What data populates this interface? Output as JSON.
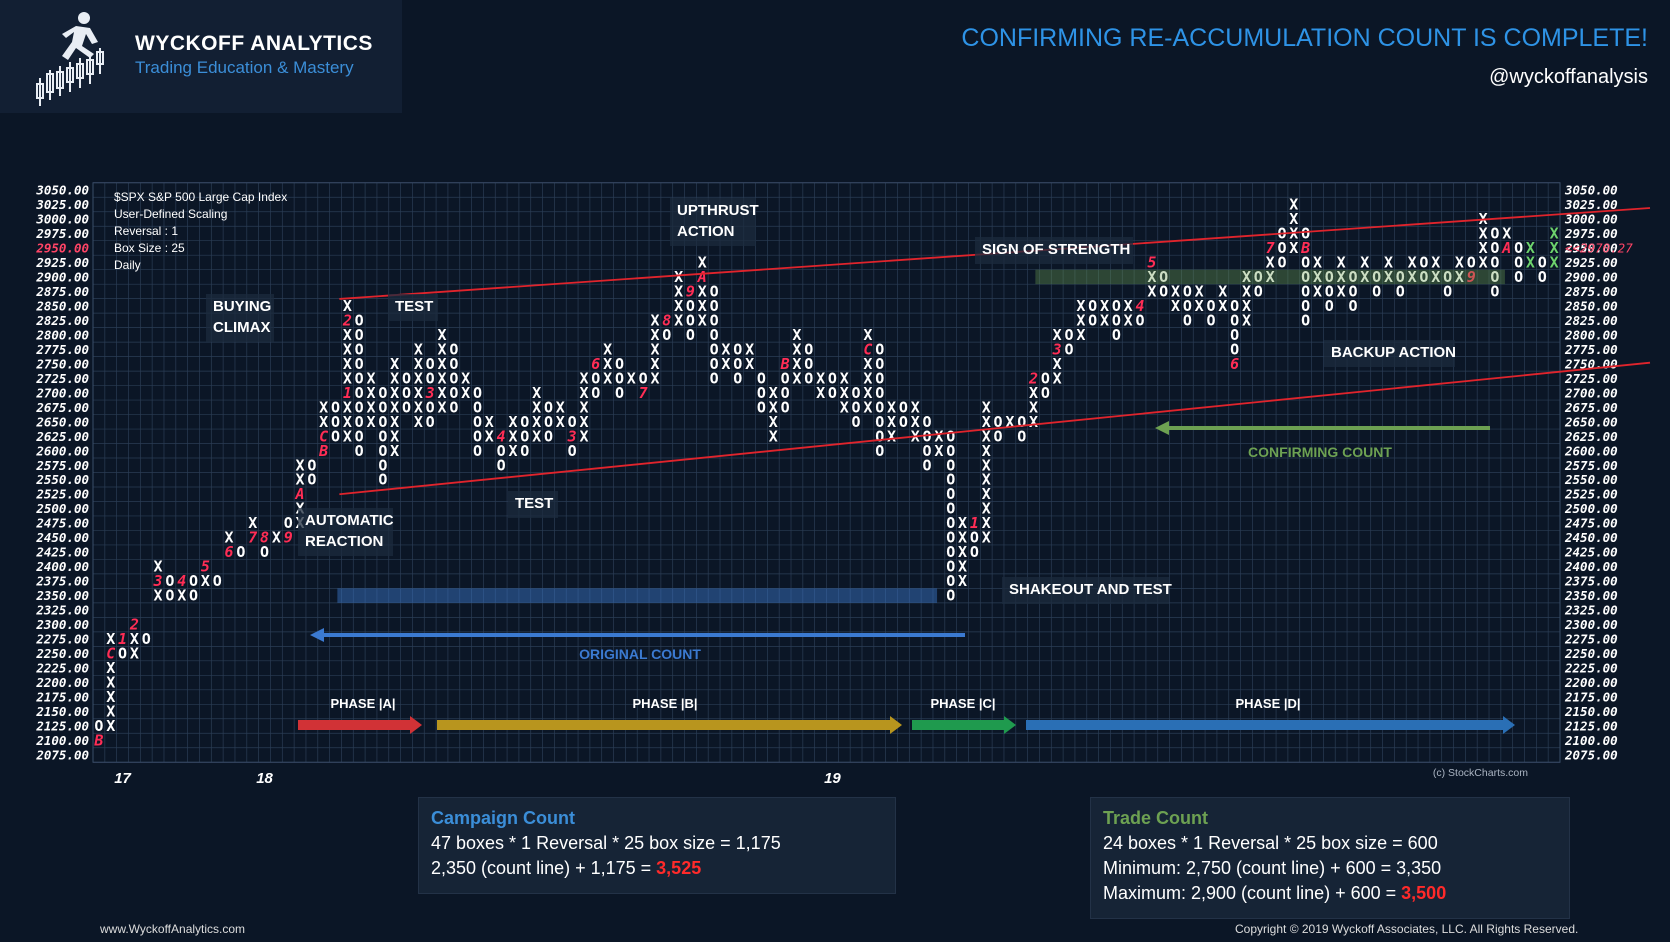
{
  "brand": {
    "name": "WYCKOFF ANALYTICS",
    "tagline": "Trading Education & Mastery"
  },
  "headline": "CONFIRMING RE-ACCUMULATION COUNT IS COMPLETE!",
  "handle": "@wyckoffanalysis",
  "info_box": [
    "$SPX S&P 500 Large Cap Index",
    "User-Defined Scaling",
    "Reversal : 1",
    "Box Size : 25",
    "Daily"
  ],
  "annotations": {
    "buying_climax": [
      "BUYING",
      "CLIMAX"
    ],
    "test1": "TEST",
    "upthrust": [
      "UPTHRUST",
      "ACTION"
    ],
    "sign_of_strength": "SIGN OF STRENGTH",
    "backup": "BACKUP ACTION",
    "confirming": "CONFIRMING COUNT",
    "automatic_reaction": [
      "AUTOMATIC",
      "REACTION"
    ],
    "test2": "TEST",
    "shakeout": "SHAKEOUT AND TEST",
    "original": "ORIGINAL COUNT"
  },
  "phases": [
    "PHASE |A|",
    "PHASE |B|",
    "PHASE |C|",
    "PHASE |D|"
  ],
  "colors": {
    "background": "#0b1626",
    "grid": "#2b3d55",
    "x_mark": "#ffffff",
    "o_mark": "#ffffff",
    "month_mark": "#ff2d55",
    "trend": "#e0242c",
    "phase_a": "#d13236",
    "phase_b": "#b8951e",
    "phase_c": "#1f9a4e",
    "phase_d": "#2a6fb5",
    "original_count": "#3b7ad1",
    "confirming_count": "#6da152"
  },
  "chart_data": {
    "type": "point-and-figure",
    "title": "$SPX S&P 500 Large Cap Index",
    "box_size": 25,
    "reversal": 1,
    "ylim": [
      2075,
      3050
    ],
    "y_ticks": [
      "3050.00",
      "3025.00",
      "3000.00",
      "2975.00",
      "2950.00",
      "2925.00",
      "2900.00",
      "2875.00",
      "2850.00",
      "2825.00",
      "2800.00",
      "2775.00",
      "2750.00",
      "2725.00",
      "2700.00",
      "2675.00",
      "2650.00",
      "2625.00",
      "2600.00",
      "2575.00",
      "2550.00",
      "2525.00",
      "2500.00",
      "2475.00",
      "2450.00",
      "2425.00",
      "2400.00",
      "2375.00",
      "2350.00",
      "2325.00",
      "2300.00",
      "2275.00",
      "2250.00",
      "2225.00",
      "2200.00",
      "2175.00",
      "2150.00",
      "2125.00",
      "2100.00",
      "2075.00"
    ],
    "highlight_left": "2950.00",
    "last_price": "<<2970.27",
    "x_labels": [
      {
        "label": "17",
        "col": 2
      },
      {
        "label": "18",
        "col": 14
      },
      {
        "label": "19",
        "col": 62
      }
    ],
    "columns": [
      {
        "type": "O",
        "low": 2100,
        "high": 2125,
        "m": {
          "2100": "B"
        }
      },
      {
        "type": "X",
        "low": 2125,
        "high": 2275,
        "m": {
          "2250": "C"
        }
      },
      {
        "type": "O",
        "low": 2250,
        "high": 2275,
        "m": {
          "2275": "1"
        }
      },
      {
        "type": "X",
        "low": 2250,
        "high": 2300,
        "m": {
          "2300": "2"
        }
      },
      {
        "type": "O",
        "low": 2275,
        "high": 2275
      },
      {
        "type": "X",
        "low": 2350,
        "high": 2400,
        "m": {
          "2375": "3"
        }
      },
      {
        "type": "O",
        "low": 2350,
        "high": 2375
      },
      {
        "type": "X",
        "low": 2350,
        "high": 2375,
        "m": {
          "2375": "4"
        }
      },
      {
        "type": "O",
        "low": 2350,
        "high": 2375
      },
      {
        "type": "X",
        "low": 2375,
        "high": 2400,
        "m": {
          "2400": "5"
        }
      },
      {
        "type": "O",
        "low": 2375,
        "high": 2375
      },
      {
        "type": "X",
        "low": 2425,
        "high": 2450,
        "m": {
          "2425": "6"
        }
      },
      {
        "type": "O",
        "low": 2425,
        "high": 2425
      },
      {
        "type": "X",
        "low": 2450,
        "high": 2475,
        "m": {
          "2450": "7"
        }
      },
      {
        "type": "O",
        "low": 2425,
        "high": 2450,
        "m": {
          "2450": "8"
        }
      },
      {
        "type": "X",
        "low": 2450,
        "high": 2450
      },
      {
        "type": "O",
        "low": 2450,
        "high": 2475,
        "m": {
          "2450": "9"
        }
      },
      {
        "type": "X",
        "low": 2475,
        "high": 2575,
        "m": {
          "2525": "A"
        }
      },
      {
        "type": "O",
        "low": 2550,
        "high": 2575
      },
      {
        "type": "X",
        "low": 2600,
        "high": 2675,
        "m": {
          "2600": "B",
          "2625": "C"
        }
      },
      {
        "type": "O",
        "low": 2625,
        "high": 2675
      },
      {
        "type": "X",
        "low": 2625,
        "high": 2850,
        "m": {
          "2700": "1",
          "2825": "2"
        }
      },
      {
        "type": "O",
        "low": 2600,
        "high": 2825
      },
      {
        "type": "X",
        "low": 2650,
        "high": 2725
      },
      {
        "type": "O",
        "low": 2550,
        "high": 2700
      },
      {
        "type": "X",
        "low": 2600,
        "high": 2750
      },
      {
        "type": "O",
        "low": 2675,
        "high": 2725
      },
      {
        "type": "X",
        "low": 2650,
        "high": 2775
      },
      {
        "type": "O",
        "low": 2650,
        "high": 2750,
        "m": {
          "2700": "3"
        }
      },
      {
        "type": "X",
        "low": 2675,
        "high": 2800
      },
      {
        "type": "O",
        "low": 2675,
        "high": 2775
      },
      {
        "type": "X",
        "low": 2700,
        "high": 2725
      },
      {
        "type": "O",
        "low": 2600,
        "high": 2700
      },
      {
        "type": "X",
        "low": 2625,
        "high": 2650
      },
      {
        "type": "O",
        "low": 2575,
        "high": 2625,
        "m": {
          "2625": "4"
        }
      },
      {
        "type": "X",
        "low": 2600,
        "high": 2650
      },
      {
        "type": "O",
        "low": 2600,
        "high": 2650
      },
      {
        "type": "X",
        "low": 2625,
        "high": 2700
      },
      {
        "type": "O",
        "low": 2625,
        "high": 2675
      },
      {
        "type": "X",
        "low": 2650,
        "high": 2675
      },
      {
        "type": "O",
        "low": 2600,
        "high": 2650,
        "m": {
          "2625": "3"
        }
      },
      {
        "type": "X",
        "low": 2625,
        "high": 2725
      },
      {
        "type": "O",
        "low": 2700,
        "high": 2750,
        "m": {
          "2750": "6"
        }
      },
      {
        "type": "X",
        "low": 2725,
        "high": 2775
      },
      {
        "type": "O",
        "low": 2700,
        "high": 2750
      },
      {
        "type": "X",
        "low": 2725,
        "high": 2725
      },
      {
        "type": "O",
        "low": 2700,
        "high": 2725,
        "m": {
          "2700": "7"
        }
      },
      {
        "type": "X",
        "low": 2725,
        "high": 2825
      },
      {
        "type": "O",
        "low": 2800,
        "high": 2825,
        "m": {
          "2825": "8"
        }
      },
      {
        "type": "X",
        "low": 2825,
        "high": 2900
      },
      {
        "type": "O",
        "low": 2800,
        "high": 2875,
        "m": {
          "2875": "9"
        }
      },
      {
        "type": "X",
        "low": 2825,
        "high": 2925,
        "m": {
          "2900": "A"
        }
      },
      {
        "type": "O",
        "low": 2725,
        "high": 2875
      },
      {
        "type": "X",
        "low": 2750,
        "high": 2775
      },
      {
        "type": "O",
        "low": 2725,
        "high": 2775
      },
      {
        "type": "X",
        "low": 2750,
        "high": 2775
      },
      {
        "type": "O",
        "low": 2675,
        "high": 2725
      },
      {
        "type": "X",
        "low": 2625,
        "high": 2700
      },
      {
        "type": "O",
        "low": 2675,
        "high": 2750,
        "m": {
          "2750": "B"
        }
      },
      {
        "type": "X",
        "low": 2725,
        "high": 2800
      },
      {
        "type": "O",
        "low": 2725,
        "high": 2775
      },
      {
        "type": "X",
        "low": 2700,
        "high": 2725
      },
      {
        "type": "O",
        "low": 2700,
        "high": 2725
      },
      {
        "type": "X",
        "low": 2675,
        "high": 2725
      },
      {
        "type": "O",
        "low": 2650,
        "high": 2700
      },
      {
        "type": "X",
        "low": 2675,
        "high": 2800,
        "m": {
          "2775": "C"
        }
      },
      {
        "type": "O",
        "low": 2600,
        "high": 2775
      },
      {
        "type": "X",
        "low": 2625,
        "high": 2675
      },
      {
        "type": "O",
        "low": 2650,
        "high": 2675
      },
      {
        "type": "X",
        "low": 2625,
        "high": 2675
      },
      {
        "type": "O",
        "low": 2575,
        "high": 2650
      },
      {
        "type": "X",
        "low": 2600,
        "high": 2625
      },
      {
        "type": "O",
        "low": 2350,
        "high": 2625
      },
      {
        "type": "X",
        "low": 2375,
        "high": 2475
      },
      {
        "type": "O",
        "low": 2425,
        "high": 2475,
        "m": {
          "2475": "1"
        }
      },
      {
        "type": "X",
        "low": 2450,
        "high": 2675
      },
      {
        "type": "O",
        "low": 2625,
        "high": 2650
      },
      {
        "type": "X",
        "low": 2650,
        "high": 2650
      },
      {
        "type": "O",
        "low": 2625,
        "high": 2650
      },
      {
        "type": "X",
        "low": 2650,
        "high": 2725,
        "m": {
          "2725": "2"
        }
      },
      {
        "type": "O",
        "low": 2700,
        "high": 2725
      },
      {
        "type": "X",
        "low": 2725,
        "high": 2800,
        "m": {
          "2775": "3"
        }
      },
      {
        "type": "O",
        "low": 2775,
        "high": 2800
      },
      {
        "type": "X",
        "low": 2800,
        "high": 2850
      },
      {
        "type": "O",
        "low": 2825,
        "high": 2850
      },
      {
        "type": "X",
        "low": 2825,
        "high": 2850
      },
      {
        "type": "O",
        "low": 2800,
        "high": 2850
      },
      {
        "type": "X",
        "low": 2825,
        "high": 2850
      },
      {
        "type": "O",
        "low": 2825,
        "high": 2850,
        "m": {
          "2850": "4"
        }
      },
      {
        "type": "X",
        "low": 2875,
        "high": 2925,
        "m": {
          "2925": "5"
        }
      },
      {
        "type": "O",
        "low": 2875,
        "high": 2900
      },
      {
        "type": "X",
        "low": 2850,
        "high": 2875
      },
      {
        "type": "O",
        "low": 2825,
        "high": 2875
      },
      {
        "type": "X",
        "low": 2850,
        "high": 2875
      },
      {
        "type": "O",
        "low": 2825,
        "high": 2850
      },
      {
        "type": "X",
        "low": 2850,
        "high": 2875
      },
      {
        "type": "O",
        "low": 2750,
        "high": 2850,
        "m": {
          "2750": "6"
        }
      },
      {
        "type": "X",
        "low": 2825,
        "high": 2900
      },
      {
        "type": "O",
        "low": 2875,
        "high": 2900
      },
      {
        "type": "X",
        "low": 2900,
        "high": 2950,
        "m": {
          "2950": "7"
        }
      },
      {
        "type": "O",
        "low": 2925,
        "high": 2975
      },
      {
        "type": "X",
        "low": 2950,
        "high": 3025
      },
      {
        "type": "O",
        "low": 2825,
        "high": 2975,
        "m": {
          "2950": "B"
        }
      },
      {
        "type": "X",
        "low": 2875,
        "high": 2925
      },
      {
        "type": "O",
        "low": 2850,
        "high": 2900
      },
      {
        "type": "X",
        "low": 2875,
        "high": 2925
      },
      {
        "type": "O",
        "low": 2850,
        "high": 2900
      },
      {
        "type": "X",
        "low": 2900,
        "high": 2925
      },
      {
        "type": "O",
        "low": 2875,
        "high": 2900
      },
      {
        "type": "X",
        "low": 2900,
        "high": 2925
      },
      {
        "type": "O",
        "low": 2875,
        "high": 2900
      },
      {
        "type": "X",
        "low": 2900,
        "high": 2925
      },
      {
        "type": "O",
        "low": 2900,
        "high": 2925
      },
      {
        "type": "X",
        "low": 2900,
        "high": 2925
      },
      {
        "type": "O",
        "low": 2875,
        "high": 2900
      },
      {
        "type": "X",
        "low": 2900,
        "high": 2925
      },
      {
        "type": "O",
        "low": 2900,
        "high": 2925,
        "m": {
          "2900": "9"
        }
      },
      {
        "type": "X",
        "low": 2925,
        "high": 3000
      },
      {
        "type": "O",
        "low": 2875,
        "high": 2975
      },
      {
        "type": "X",
        "low": 2950,
        "high": 2975,
        "m": {
          "2950": "A"
        }
      },
      {
        "type": "O",
        "low": 2900,
        "high": 2950
      },
      {
        "type": "X",
        "low": 2925,
        "high": 2950
      },
      {
        "type": "O",
        "low": 2900,
        "high": 2925
      },
      {
        "type": "X",
        "low": 2925,
        "high": 2975
      }
    ]
  },
  "campaign": {
    "title": "Campaign Count",
    "line1": "47 boxes * 1 Reversal * 25 box size = 1,175",
    "line2_prefix": "2,350 (count line) + 1,175 = ",
    "line2_result": "3,525"
  },
  "trade": {
    "title": "Trade Count",
    "line1": "24 boxes * 1 Reversal * 25 box size = 600",
    "line2": "Minimum: 2,750 (count line) + 600 = 3,350",
    "line3_prefix": "Maximum: 2,900 (count line) + 600 = ",
    "line3_result": "3,500"
  },
  "footer": {
    "website": "www.WyckoffAnalytics.com",
    "copyright": "Copyright © 2019 Wyckoff Associates, LLC. All Rights Reserved.",
    "stockcharts": "(c) StockCharts.com"
  }
}
